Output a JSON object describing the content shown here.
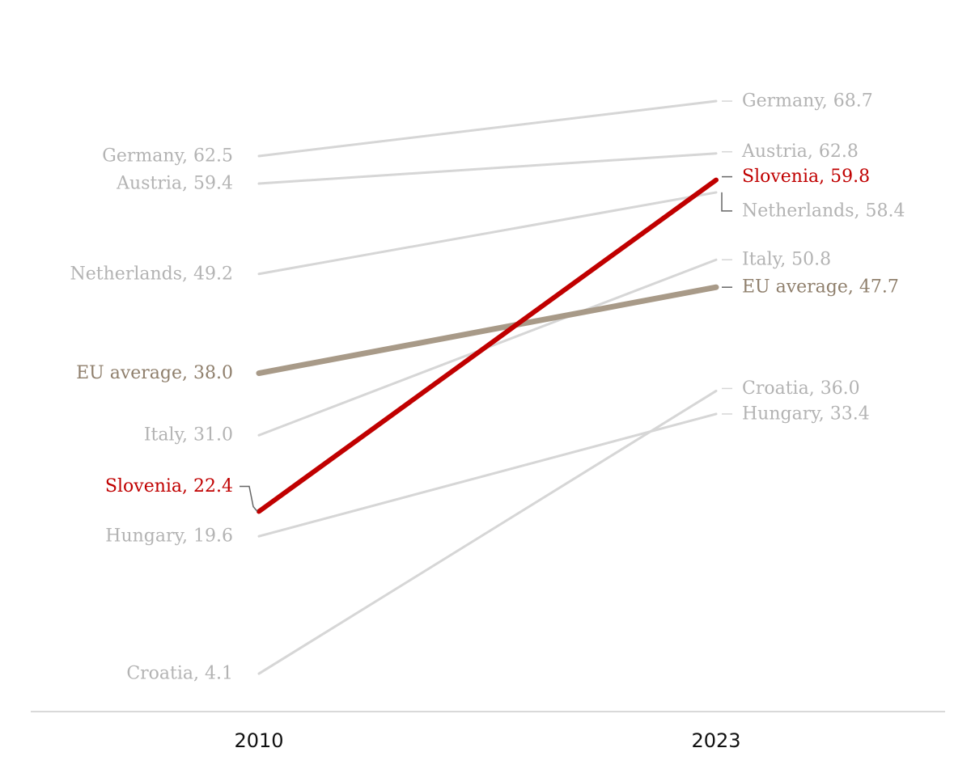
{
  "chart_data": {
    "type": "line",
    "subtype": "slope",
    "x": [
      "2010",
      "2023"
    ],
    "series": [
      {
        "name": "Germany",
        "values": [
          62.5,
          68.7
        ],
        "start_label": "Germany, 62.5",
        "end_label": "Germany, 68.7",
        "color": "#d6d6d6",
        "label_color": "#b3b3b3"
      },
      {
        "name": "Austria",
        "values": [
          59.4,
          62.8
        ],
        "start_label": "Austria, 59.4",
        "end_label": "Austria, 62.8",
        "color": "#d6d6d6",
        "label_color": "#b3b3b3"
      },
      {
        "name": "Netherlands",
        "values": [
          49.2,
          58.4
        ],
        "start_label": "Netherlands, 49.2",
        "end_label": "Netherlands, 58.4",
        "color": "#d6d6d6",
        "label_color": "#b3b3b3"
      },
      {
        "name": "Italy",
        "values": [
          31.0,
          50.8
        ],
        "start_label": "Italy, 31.0",
        "end_label": "Italy, 50.8",
        "color": "#d6d6d6",
        "label_color": "#b3b3b3"
      },
      {
        "name": "Hungary",
        "values": [
          19.6,
          33.4
        ],
        "start_label": "Hungary, 19.6",
        "end_label": "Hungary, 33.4",
        "color": "#d6d6d6",
        "label_color": "#b3b3b3"
      },
      {
        "name": "Croatia",
        "values": [
          4.1,
          36.0
        ],
        "start_label": "Croatia, 4.1",
        "end_label": "Croatia, 36.0",
        "color": "#d6d6d6",
        "label_color": "#b3b3b3"
      },
      {
        "name": "EU average",
        "values": [
          38.0,
          47.7
        ],
        "start_label": "EU average, 38.0",
        "end_label": "EU average, 47.7",
        "color": "#a89a88",
        "label_color": "#8f7f6c",
        "emphasis": "medium"
      },
      {
        "name": "Slovenia",
        "values": [
          22.4,
          59.8
        ],
        "start_label": "Slovenia, 22.4",
        "end_label": "Slovenia, 59.8",
        "color": "#c00000",
        "label_color": "#c00000",
        "emphasis": "high"
      }
    ],
    "title": "",
    "xlabel": "",
    "ylabel": "",
    "grid": false
  }
}
